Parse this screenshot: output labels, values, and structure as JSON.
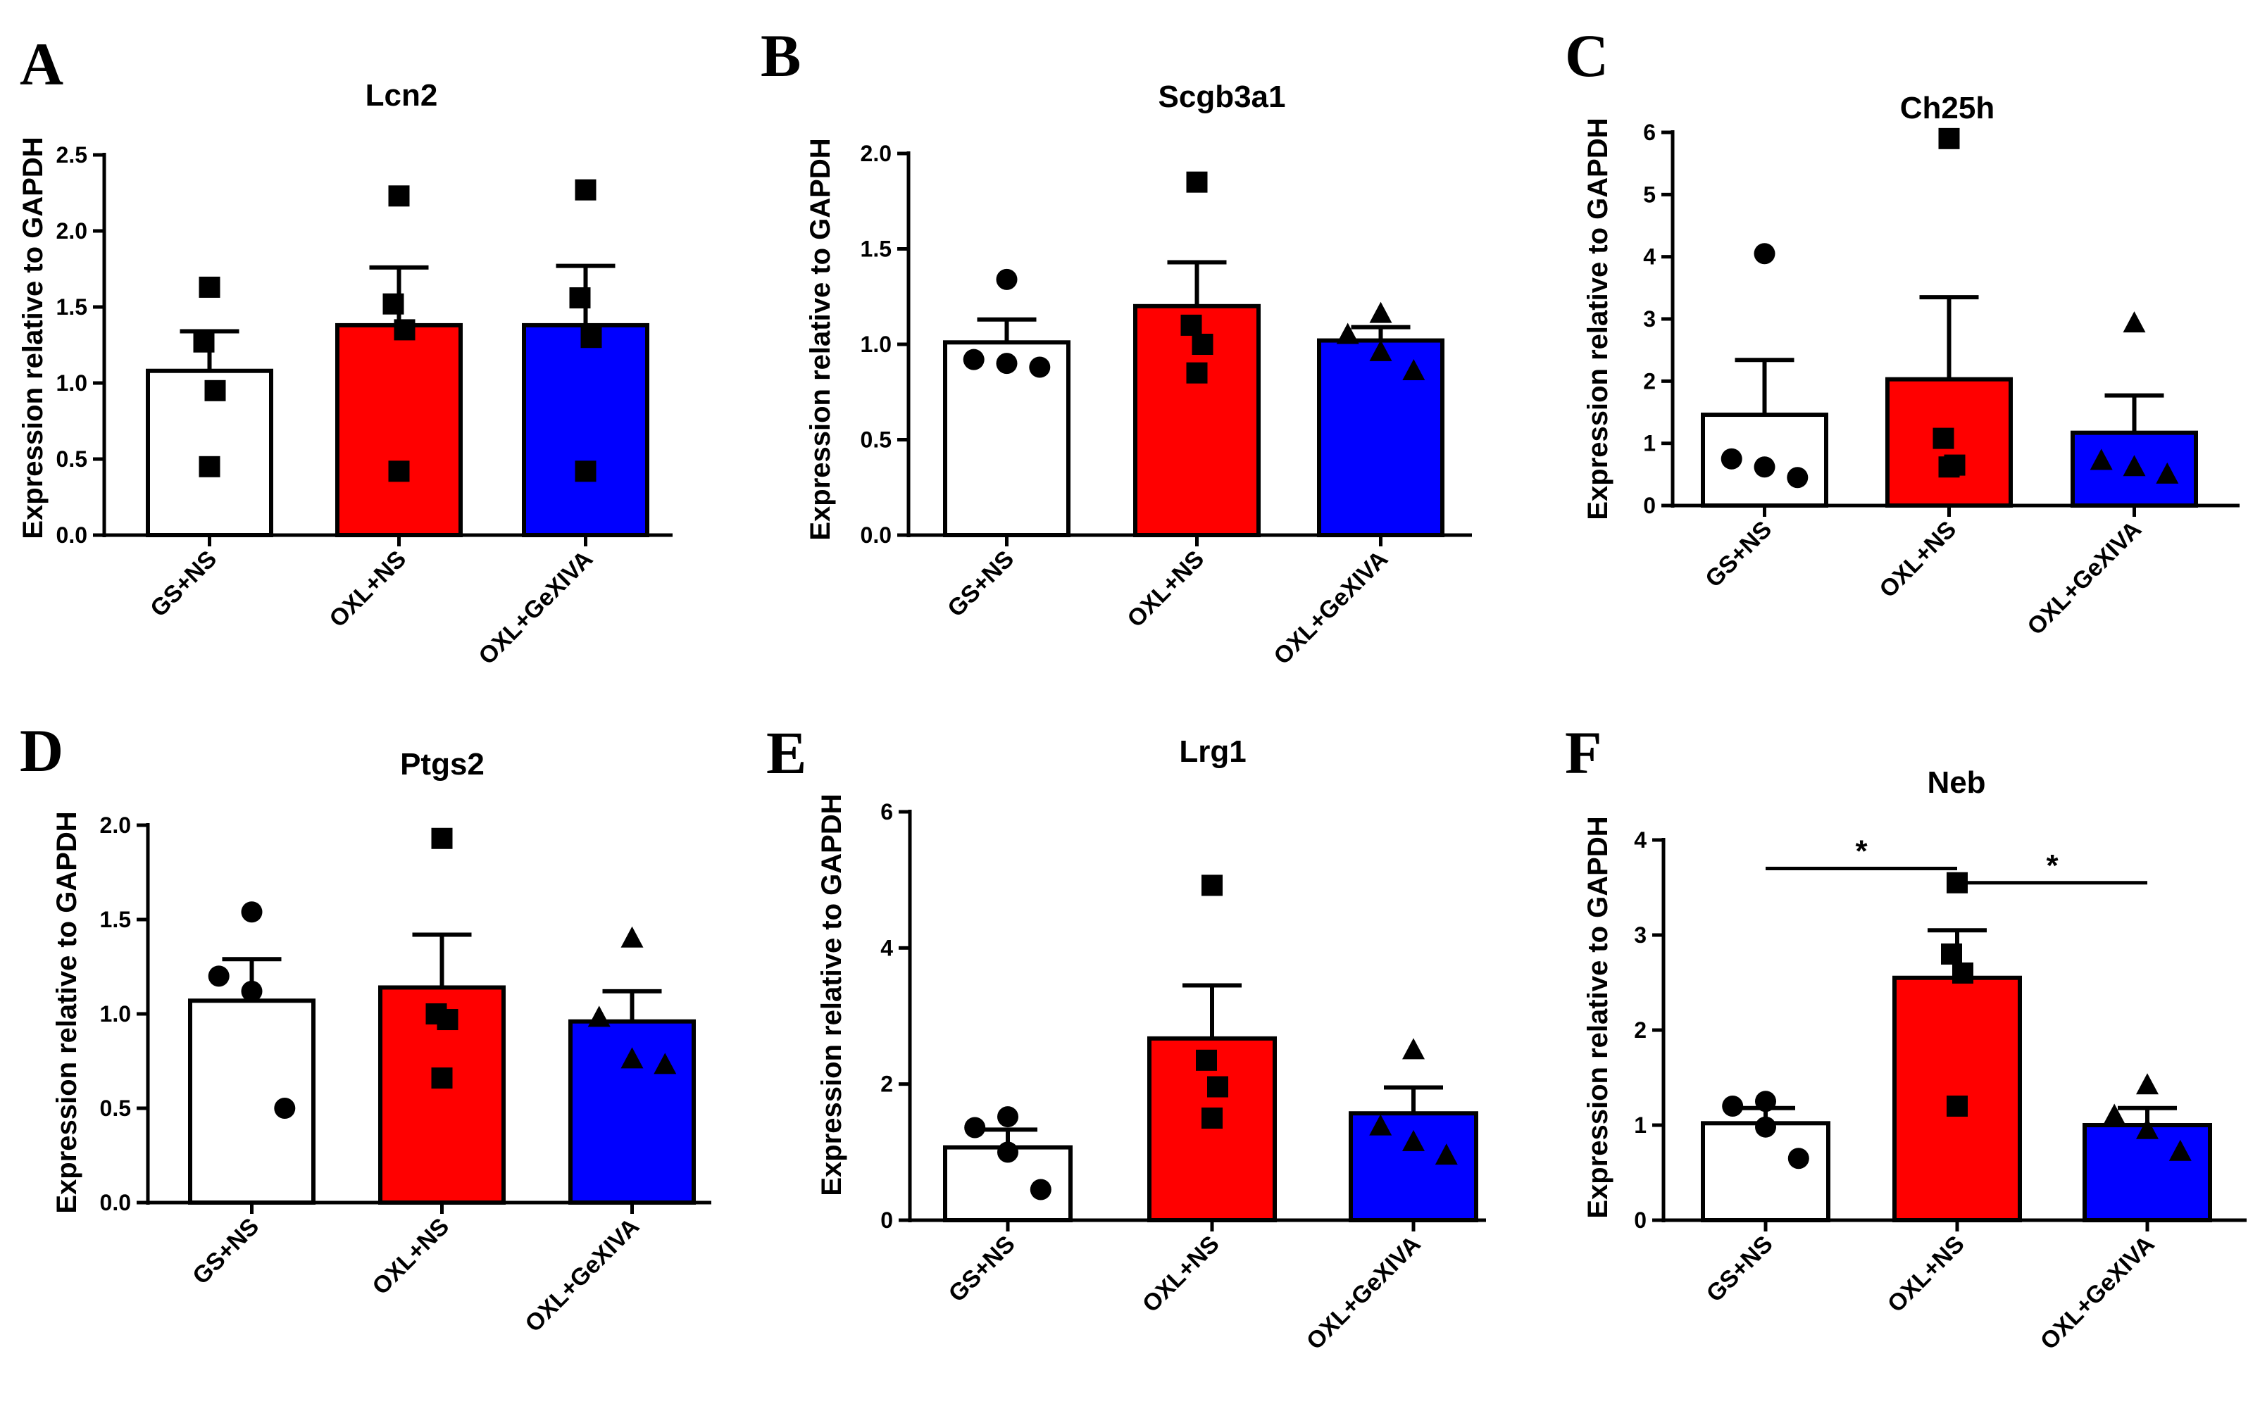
{
  "chart_data": [
    {
      "type": "bar",
      "panel": "A",
      "title": "Lcn2",
      "ylabel": "Expression relative to GAPDH",
      "ylim": [
        0,
        2.5
      ],
      "yticks": [
        "0.0",
        "0.5",
        "1.0",
        "1.5",
        "2.0",
        "2.5"
      ],
      "categories": [
        "GS+NS",
        "OXL+NS",
        "OXL+GeXIVA"
      ],
      "values": [
        1.08,
        1.38,
        1.38
      ],
      "errors": [
        0.26,
        0.38,
        0.39
      ],
      "points": [
        [
          1.63,
          1.27,
          0.95,
          0.45
        ],
        [
          2.23,
          1.52,
          1.35,
          0.42
        ],
        [
          2.27,
          1.56,
          1.3,
          0.42
        ]
      ],
      "colors": [
        "#ffffff",
        "#ff0000",
        "#0000ff"
      ],
      "markers": [
        "square",
        "square",
        "square"
      ],
      "significance": []
    },
    {
      "type": "bar",
      "panel": "B",
      "title": "Scgb3a1",
      "ylabel": "Expression relative to GAPDH",
      "ylim": [
        0,
        2.0
      ],
      "yticks": [
        "0.0",
        "0.5",
        "1.0",
        "1.5",
        "2.0"
      ],
      "categories": [
        "GS+NS",
        "OXL+NS",
        "OXL+GeXIVA"
      ],
      "values": [
        1.01,
        1.2,
        1.02
      ],
      "errors": [
        0.12,
        0.23,
        0.07
      ],
      "points": [
        [
          1.34,
          0.92,
          0.9,
          0.88
        ],
        [
          1.85,
          1.1,
          1.0,
          0.85
        ],
        [
          1.16,
          1.05,
          0.96,
          0.86
        ]
      ],
      "colors": [
        "#ffffff",
        "#ff0000",
        "#0000ff"
      ],
      "markers": [
        "circle",
        "square",
        "triangle"
      ],
      "significance": []
    },
    {
      "type": "bar",
      "panel": "C",
      "title": "Ch25h",
      "ylabel": "Expression relative to GAPDH",
      "ylim": [
        0,
        6
      ],
      "yticks": [
        "0",
        "1",
        "2",
        "3",
        "4",
        "5",
        "6"
      ],
      "categories": [
        "GS+NS",
        "OXL+NS",
        "OXL+GeXIVA"
      ],
      "values": [
        1.46,
        2.03,
        1.17
      ],
      "errors": [
        0.88,
        1.32,
        0.6
      ],
      "points": [
        [
          4.05,
          0.75,
          0.62,
          0.45
        ],
        [
          5.9,
          1.08,
          0.65,
          0.62
        ],
        [
          2.93,
          0.72,
          0.62,
          0.5
        ]
      ],
      "colors": [
        "#ffffff",
        "#ff0000",
        "#0000ff"
      ],
      "markers": [
        "circle",
        "square",
        "triangle"
      ],
      "significance": []
    },
    {
      "type": "bar",
      "panel": "D",
      "title": "Ptgs2",
      "ylabel": "Expression relative to GAPDH",
      "ylim": [
        0,
        2.0
      ],
      "yticks": [
        "0.0",
        "0.5",
        "1.0",
        "1.5",
        "2.0"
      ],
      "categories": [
        "GS+NS",
        "OXL+NS",
        "OXL+GeXIVA"
      ],
      "values": [
        1.07,
        1.14,
        0.96
      ],
      "errors": [
        0.22,
        0.28,
        0.16
      ],
      "points": [
        [
          1.54,
          1.2,
          1.12,
          0.5
        ],
        [
          1.93,
          1.0,
          0.97,
          0.66
        ],
        [
          1.4,
          0.98,
          0.76,
          0.73
        ]
      ],
      "colors": [
        "#ffffff",
        "#ff0000",
        "#0000ff"
      ],
      "markers": [
        "circle",
        "square",
        "triangle"
      ],
      "significance": []
    },
    {
      "type": "bar",
      "panel": "E",
      "title": "Lrg1",
      "ylabel": "Expression relative to GAPDH",
      "ylim": [
        0,
        6
      ],
      "yticks": [
        "0",
        "2",
        "4",
        "6"
      ],
      "categories": [
        "GS+NS",
        "OXL+NS",
        "OXL+GeXIVA"
      ],
      "values": [
        1.07,
        2.67,
        1.57
      ],
      "errors": [
        0.26,
        0.78,
        0.38
      ],
      "points": [
        [
          1.52,
          1.36,
          1.0,
          0.45
        ],
        [
          4.92,
          2.35,
          1.96,
          1.5
        ],
        [
          2.5,
          1.38,
          1.15,
          0.95
        ]
      ],
      "colors": [
        "#ffffff",
        "#ff0000",
        "#0000ff"
      ],
      "markers": [
        "circle",
        "square",
        "triangle"
      ],
      "significance": []
    },
    {
      "type": "bar",
      "panel": "F",
      "title": "Neb",
      "ylabel": "Expression relative to GAPDH",
      "ylim": [
        0,
        4
      ],
      "yticks": [
        "0",
        "1",
        "2",
        "3",
        "4"
      ],
      "categories": [
        "GS+NS",
        "OXL+NS",
        "OXL+GeXIVA"
      ],
      "values": [
        1.02,
        2.55,
        1.0
      ],
      "errors": [
        0.16,
        0.5,
        0.18
      ],
      "points": [
        [
          1.25,
          1.2,
          0.98,
          0.65
        ],
        [
          3.55,
          2.8,
          2.6,
          1.2
        ],
        [
          1.42,
          1.1,
          0.95,
          0.72
        ]
      ],
      "colors": [
        "#ffffff",
        "#ff0000",
        "#0000ff"
      ],
      "markers": [
        "circle",
        "square",
        "triangle"
      ],
      "significance": [
        {
          "from": 0,
          "to": 1,
          "y": 3.7,
          "label": "*"
        },
        {
          "from": 1,
          "to": 2,
          "y": 3.55,
          "label": "*"
        }
      ]
    }
  ]
}
